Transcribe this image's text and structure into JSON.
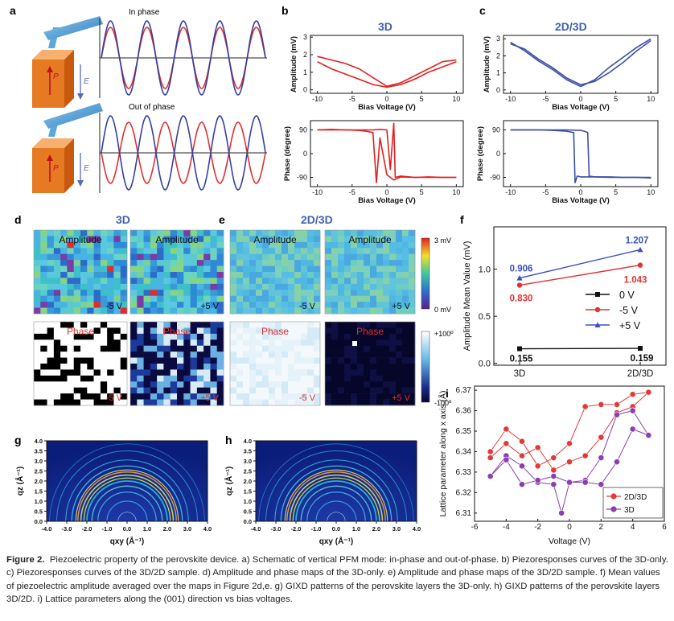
{
  "panels": {
    "a": {
      "label": "a",
      "in_phase": "In phase",
      "out_of_phase": "Out of phase",
      "p": "P",
      "e": "E"
    },
    "b": {
      "label": "b",
      "title": "3D"
    },
    "c": {
      "label": "c",
      "title": "2D/3D"
    },
    "d": {
      "label": "d",
      "title": "3D"
    },
    "e": {
      "label": "e",
      "title": "2D/3D"
    },
    "f": {
      "label": "f"
    },
    "g": {
      "label": "g"
    },
    "h": {
      "label": "h"
    },
    "i": {
      "label": "i"
    }
  },
  "map_labels": {
    "amplitude": "Amplitude",
    "phase": "Phase",
    "minus5": "-5 V",
    "plus5": "+5 V",
    "amp_scale_top": "3 mV",
    "amp_scale_bottom": "0 mV",
    "phase_scale_top": "+100º",
    "phase_scale_bottom": "-100º"
  },
  "chart_data": [
    {
      "id": "b-amplitude",
      "type": "line",
      "xlabel": "Bias Voltage (V)",
      "ylabel": "Amplitude (mV)",
      "xlim": [
        -11,
        11
      ],
      "ylim": [
        -0.2,
        3.1
      ],
      "xticks": [
        -10,
        -5,
        0,
        5,
        10
      ],
      "yticks": [
        0,
        1,
        2,
        3
      ],
      "color": "#e02020",
      "series": [
        {
          "x": [
            -10,
            -8,
            -6,
            -4,
            -2,
            0,
            2,
            4,
            6,
            8,
            10
          ],
          "values": [
            1.9,
            1.7,
            1.5,
            1.2,
            0.7,
            0.2,
            0.4,
            0.8,
            1.2,
            1.6,
            1.7
          ]
        },
        {
          "x": [
            10,
            8,
            6,
            4,
            2,
            0,
            -2,
            -4,
            -6,
            -8,
            -10
          ],
          "values": [
            1.6,
            1.3,
            1.0,
            0.6,
            0.3,
            0.15,
            0.3,
            0.6,
            0.9,
            1.2,
            1.6
          ]
        }
      ]
    },
    {
      "id": "b-phase",
      "type": "line",
      "xlabel": "Bias Voltage (V)",
      "ylabel": "Phase (degree)",
      "xlim": [
        -11,
        11
      ],
      "ylim": [
        -125,
        125
      ],
      "xticks": [
        -10,
        -5,
        0,
        5,
        10
      ],
      "yticks": [
        -90,
        0,
        90
      ],
      "color": "#e02020",
      "series": [
        {
          "x": [
            -10,
            -8,
            -6,
            -4,
            -3,
            -2,
            -1.5,
            -1,
            0,
            1,
            2,
            4,
            6,
            8,
            10
          ],
          "values": [
            90,
            92,
            90,
            88,
            85,
            80,
            -110,
            60,
            -80,
            -100,
            -88,
            -90,
            -90,
            -90,
            -90
          ]
        },
        {
          "x": [
            10,
            8,
            6,
            4,
            2,
            1.2,
            1,
            0.5,
            0,
            -1,
            -2,
            -4,
            -6,
            -8,
            -10
          ],
          "values": [
            -90,
            -90,
            -88,
            -90,
            -85,
            -90,
            115,
            -60,
            90,
            92,
            90,
            90,
            90,
            90,
            90
          ]
        }
      ]
    },
    {
      "id": "c-amplitude",
      "type": "line",
      "xlabel": "Bias Voltage (V)",
      "ylabel": "Amplitude (mV)",
      "xlim": [
        -11,
        11
      ],
      "ylim": [
        -0.2,
        3.2
      ],
      "xticks": [
        -10,
        -5,
        0,
        5,
        10
      ],
      "yticks": [
        0,
        1,
        2,
        3
      ],
      "color": "#3b4ea8",
      "series": [
        {
          "x": [
            -10,
            -8,
            -6,
            -4,
            -2,
            0,
            2,
            4,
            6,
            8,
            10
          ],
          "values": [
            2.8,
            2.3,
            1.7,
            1.2,
            0.6,
            0.2,
            0.6,
            1.3,
            1.9,
            2.5,
            3.0
          ]
        },
        {
          "x": [
            10,
            8,
            6,
            4,
            2,
            0,
            -2,
            -4,
            -6,
            -8,
            -10
          ],
          "values": [
            2.9,
            2.3,
            1.6,
            1.0,
            0.5,
            0.3,
            0.7,
            1.3,
            1.8,
            2.4,
            2.7
          ]
        }
      ]
    },
    {
      "id": "c-phase",
      "type": "line",
      "xlabel": "Bias Voltage (V)",
      "ylabel": "Phase (degree)",
      "xlim": [
        -11,
        11
      ],
      "ylim": [
        -125,
        125
      ],
      "xticks": [
        -10,
        -5,
        0,
        5,
        10
      ],
      "yticks": [
        -90,
        0,
        90
      ],
      "color": "#3b4ea8",
      "series": [
        {
          "x": [
            -10,
            -6,
            -4,
            -2,
            -1,
            -0.8,
            -0.5,
            0,
            2,
            4,
            6,
            8,
            10
          ],
          "values": [
            90,
            90,
            88,
            85,
            80,
            -110,
            -85,
            -88,
            -88,
            -90,
            -90,
            -90,
            -92
          ]
        },
        {
          "x": [
            10,
            6,
            4,
            2,
            1.2,
            1,
            0.5,
            0,
            -2,
            -4,
            -6,
            -10
          ],
          "values": [
            -90,
            -90,
            -88,
            -88,
            -85,
            80,
            85,
            88,
            90,
            90,
            90,
            90
          ]
        }
      ]
    },
    {
      "id": "f",
      "type": "line",
      "xlabel": "",
      "ylabel": "Amplitude Mean Value (mV)",
      "categories": [
        "3D",
        "2D/3D"
      ],
      "ylim": [
        -0.02,
        1.45
      ],
      "yticks": [
        0.0,
        0.5,
        1.0
      ],
      "legend": "right",
      "series": [
        {
          "name": "0 V",
          "color": "#111111",
          "values": [
            0.155,
            0.159
          ],
          "labels": [
            "0.155",
            "0.159"
          ]
        },
        {
          "name": "-5 V",
          "color": "#e23333",
          "values": [
            0.83,
            1.043
          ],
          "labels": [
            "0.830",
            "1.043"
          ]
        },
        {
          "name": "+5 V",
          "color": "#3b4ec0",
          "values": [
            0.906,
            1.207
          ],
          "labels": [
            "0.906",
            "1.207"
          ]
        }
      ]
    },
    {
      "id": "i",
      "type": "line",
      "xlabel": "Voltage (V)",
      "ylabel": "Lattice parameter along x axis (Å)",
      "xlim": [
        -6,
        6
      ],
      "ylim": [
        6.306,
        6.372
      ],
      "xticks": [
        -6,
        -4,
        -2,
        0,
        2,
        4,
        6
      ],
      "yticks": [
        6.31,
        6.32,
        6.33,
        6.34,
        6.35,
        6.36,
        6.37
      ],
      "legend": "bottom-right",
      "series": [
        {
          "name": "2D/3D",
          "color": "#e23a3a",
          "x": [
            -5,
            -4,
            -3,
            -2,
            -1,
            0,
            1,
            2,
            3,
            4,
            5,
            4,
            3,
            2,
            1,
            0,
            -1,
            -2,
            -3,
            -4,
            -5
          ],
          "values": [
            6.34,
            6.351,
            6.345,
            6.333,
            6.337,
            6.344,
            6.362,
            6.363,
            6.363,
            6.368,
            6.369,
            6.362,
            6.359,
            6.347,
            6.338,
            6.335,
            6.331,
            6.342,
            6.338,
            6.344,
            6.337
          ]
        },
        {
          "name": "3D",
          "color": "#8a3fb0",
          "x": [
            -5,
            -4,
            -3,
            -2,
            -1,
            -0.5,
            0,
            1,
            2,
            3,
            4,
            5,
            4,
            3,
            2,
            1,
            0,
            -1,
            -2,
            -3,
            -4,
            -5
          ],
          "values": [
            6.328,
            6.338,
            6.333,
            6.325,
            6.324,
            6.31,
            6.325,
            6.326,
            6.337,
            6.358,
            6.36,
            6.348,
            6.351,
            6.335,
            6.324,
            6.325,
            6.325,
            6.328,
            6.326,
            6.324,
            6.336,
            6.328
          ]
        }
      ]
    },
    {
      "id": "g",
      "type": "heatmap",
      "xlabel": "qxy (Å⁻¹)",
      "ylabel": "qz (Å⁻¹)",
      "xlim": [
        -4,
        4
      ],
      "ylim": [
        0,
        4
      ],
      "xticks": [
        -4.0,
        -3.0,
        -2.0,
        -1.0,
        0.0,
        1.0,
        2.0,
        3.0,
        4.0
      ],
      "yticks": [
        0.0,
        0.5,
        1.0,
        1.5,
        2.0,
        2.5,
        3.0,
        3.5,
        4.0
      ]
    },
    {
      "id": "h",
      "type": "heatmap",
      "xlabel": "qxy (Å⁻¹)",
      "ylabel": "qz (Å⁻¹)",
      "xlim": [
        -4,
        4
      ],
      "ylim": [
        0,
        4
      ],
      "xticks": [
        -4.0,
        -3.0,
        -2.0,
        -1.0,
        0.0,
        1.0,
        2.0,
        3.0,
        4.0
      ],
      "yticks": [
        0.0,
        0.5,
        1.0,
        1.5,
        2.0,
        2.5,
        3.0,
        3.5,
        4.0
      ]
    }
  ],
  "caption": {
    "label": "Figure 2.",
    "text": "Piezoelectric property of the perovskite device. a) Schematic of vertical PFM mode: in-phase and out-of-phase. b) Piezoresponses curves of the 3D-only. c) Piezoresponses curves of the 3D/2D sample. d) Amplitude and phase maps of the 3D-only. e) Amplitude and phase maps of the 3D/2D sample. f) Mean values of piezoelectric amplitude averaged over the maps in Figure 2d,e. g) GIXD patterns of the perovskite layers the 3D-only. h) GIXD patterns of the perovskite layers 3D/2D. i) Lattice parameters along the (001) direction vs bias voltages."
  }
}
